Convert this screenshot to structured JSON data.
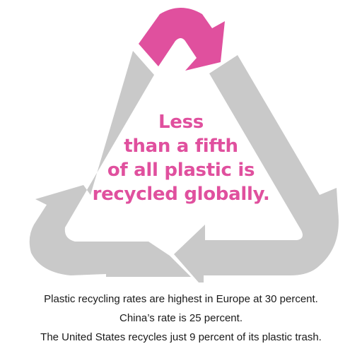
{
  "colors": {
    "accent": "#e0509e",
    "arrow_gray": "#c9c9c9",
    "text": "#1a1a1a"
  },
  "headline": {
    "lines": [
      "Less",
      "than a fifth",
      "of all plastic is",
      "recycled globally."
    ]
  },
  "caption": {
    "lines": [
      "Plastic recycling rates are highest in Europe at 30 percent.",
      "China’s rate is 25 percent.",
      "The United States recycles just 9 percent of its plastic trash."
    ]
  }
}
